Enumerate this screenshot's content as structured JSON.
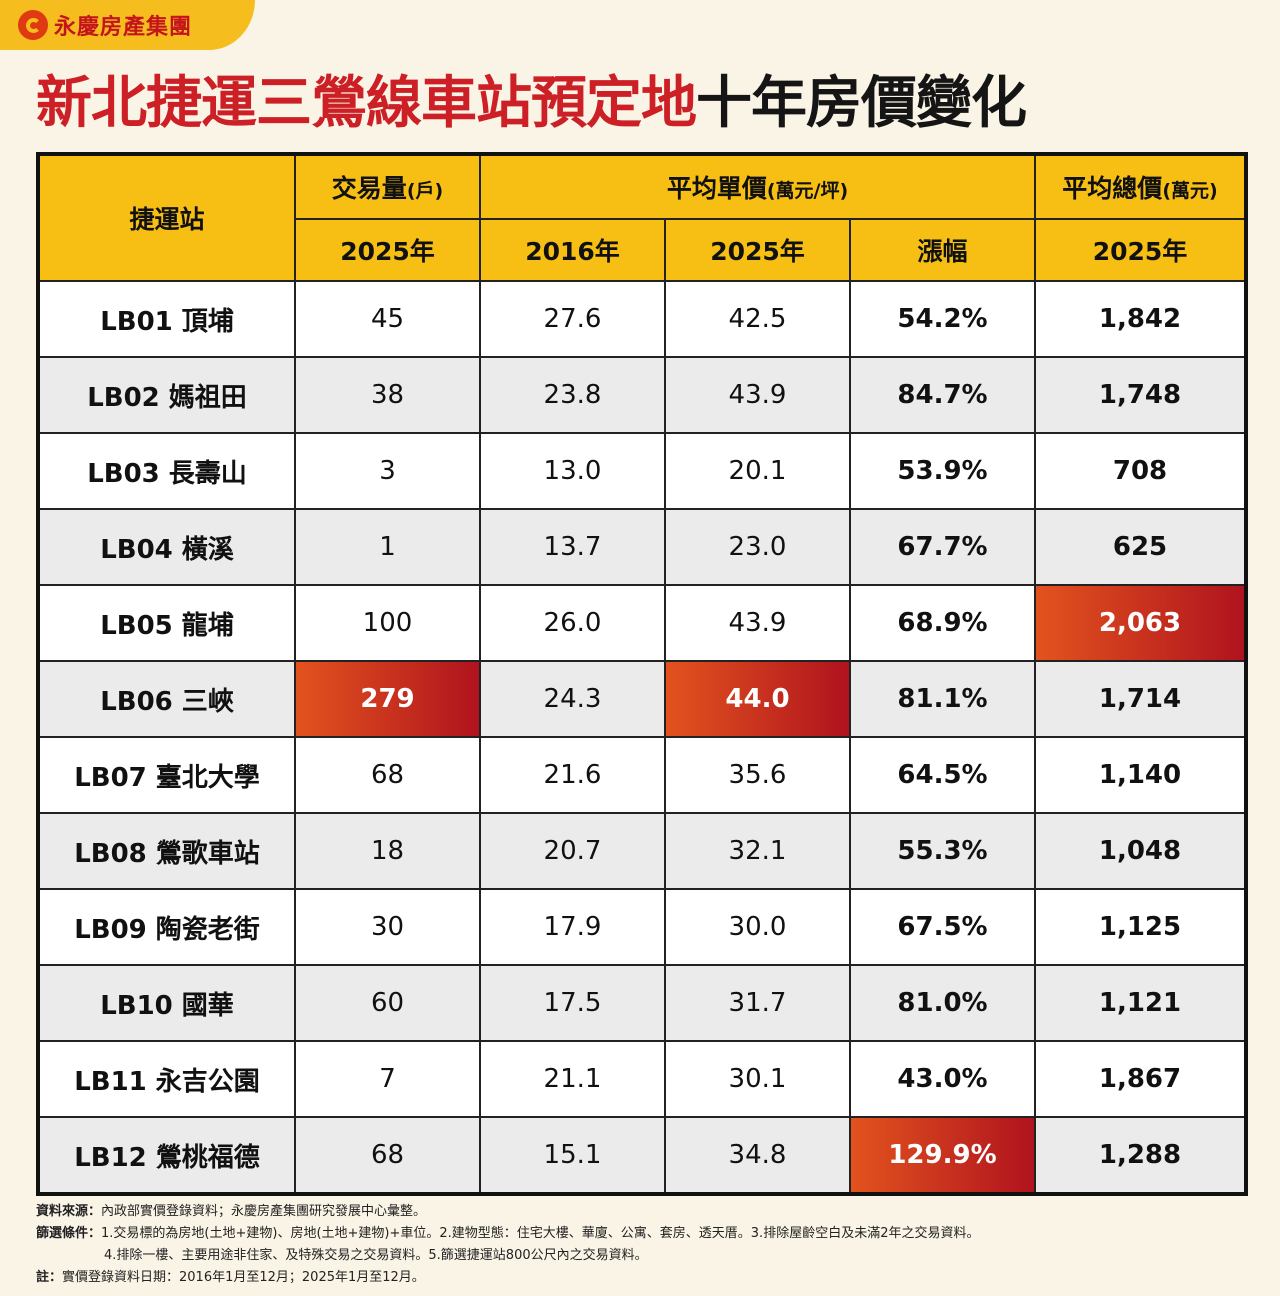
{
  "brand": {
    "name": "永慶房產集團"
  },
  "title": {
    "red": "新北捷運三鶯線車站預定地",
    "black": "十年房價變化"
  },
  "table": {
    "headers": {
      "station": "捷運站",
      "volume": "交易量",
      "volume_unit": "(戶)",
      "unit_price": "平均單價",
      "unit_price_unit": "(萬元/坪)",
      "total_price": "平均總價",
      "total_price_unit": "(萬元)",
      "sub": [
        "2025年",
        "2016年",
        "2025年",
        "漲幅",
        "2025年"
      ]
    },
    "rows": [
      {
        "station": "LB01 頂埔",
        "volume": "45",
        "p2016": "27.6",
        "p2025": "42.5",
        "growth": "54.2%",
        "total": "1,842"
      },
      {
        "station": "LB02 媽祖田",
        "volume": "38",
        "p2016": "23.8",
        "p2025": "43.9",
        "growth": "84.7%",
        "total": "1,748"
      },
      {
        "station": "LB03 長壽山",
        "volume": "3",
        "p2016": "13.0",
        "p2025": "20.1",
        "growth": "53.9%",
        "total": "708"
      },
      {
        "station": "LB04 橫溪",
        "volume": "1",
        "p2016": "13.7",
        "p2025": "23.0",
        "growth": "67.7%",
        "total": "625"
      },
      {
        "station": "LB05 龍埔",
        "volume": "100",
        "p2016": "26.0",
        "p2025": "43.9",
        "growth": "68.9%",
        "total": "2,063"
      },
      {
        "station": "LB06 三峽",
        "volume": "279",
        "p2016": "24.3",
        "p2025": "44.0",
        "growth": "81.1%",
        "total": "1,714"
      },
      {
        "station": "LB07 臺北大學",
        "volume": "68",
        "p2016": "21.6",
        "p2025": "35.6",
        "growth": "64.5%",
        "total": "1,140"
      },
      {
        "station": "LB08 鶯歌車站",
        "volume": "18",
        "p2016": "20.7",
        "p2025": "32.1",
        "growth": "55.3%",
        "total": "1,048"
      },
      {
        "station": "LB09 陶瓷老街",
        "volume": "30",
        "p2016": "17.9",
        "p2025": "30.0",
        "growth": "67.5%",
        "total": "1,125"
      },
      {
        "station": "LB10 國華",
        "volume": "60",
        "p2016": "17.5",
        "p2025": "31.7",
        "growth": "81.0%",
        "total": "1,121"
      },
      {
        "station": "LB11 永吉公園",
        "volume": "7",
        "p2016": "21.1",
        "p2025": "30.1",
        "growth": "43.0%",
        "total": "1,867"
      },
      {
        "station": "LB12 鶯桃福德",
        "volume": "68",
        "p2016": "15.1",
        "p2025": "34.8",
        "growth": "129.9%",
        "total": "1,288"
      }
    ],
    "highlight_color_start": "#e2531e",
    "highlight_color_end": "#b0131e",
    "header_color": "#f7be14"
  },
  "notes": {
    "source_label": "資料來源：",
    "source_text": "內政部實價登錄資料；永慶房產集團研究發展中心彙整。",
    "filter_label": "篩選條件：",
    "filter_text_1": "1.交易標的為房地(土地+建物)、房地(土地+建物)+車位。2.建物型態：住宅大樓、華廈、公寓、套房、透天厝。3.排除屋齡空白及未滿2年之交易資料。",
    "filter_text_2": "4.排除一樓、主要用途非住家、及特殊交易之交易資料。5.篩選捷運站800公尺內之交易資料。",
    "note_label": "註：",
    "note_text": "實價登錄資料日期：2016年1月至12月；2025年1月至12月。"
  }
}
